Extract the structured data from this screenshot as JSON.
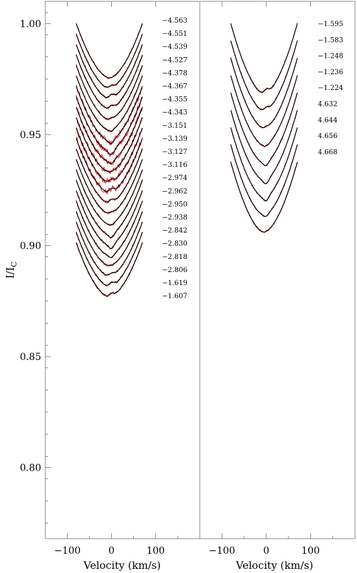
{
  "chart_data": [
    {
      "type": "line",
      "panel": "left",
      "xlabel": "Velocity (km/s)",
      "ylabel": "I/I",
      "ylabel_sub": "C",
      "xlim": [
        -150,
        200
      ],
      "ylim": [
        0.768,
        1.01
      ],
      "xticks": [
        -100,
        0,
        100
      ],
      "xtick_labels": [
        "−100",
        "0",
        "100"
      ],
      "yticks": [
        0.8,
        0.85,
        0.9,
        0.95,
        1.0
      ],
      "ytick_labels": [
        "0.80",
        "0.85",
        "0.90",
        "0.95",
        "1.00"
      ],
      "profile_continuum_step": 0.0047,
      "profile_top": 1.0,
      "profile_depth": 0.0245,
      "profile_velocity_range": [
        -80,
        70
      ],
      "series": [
        {
          "label": "−4.563",
          "offset": 1.0
        },
        {
          "label": "−4.551",
          "offset": 0.9953
        },
        {
          "label": "−4.539",
          "offset": 0.9906
        },
        {
          "label": "−4.527",
          "offset": 0.9859
        },
        {
          "label": "−4.378",
          "offset": 0.9812
        },
        {
          "label": "−4.367",
          "offset": 0.9765
        },
        {
          "label": "−4.355",
          "offset": 0.9718
        },
        {
          "label": "−4.343",
          "offset": 0.9671
        },
        {
          "label": "−3.151",
          "offset": 0.9624
        },
        {
          "label": "−3.139",
          "offset": 0.9577
        },
        {
          "label": "−3.127",
          "offset": 0.953
        },
        {
          "label": "−3.116",
          "offset": 0.9483
        },
        {
          "label": "−2.974",
          "offset": 0.9436
        },
        {
          "label": "−2.962",
          "offset": 0.9389
        },
        {
          "label": "−2.950",
          "offset": 0.9342
        },
        {
          "label": "−2.938",
          "offset": 0.9295
        },
        {
          "label": "−2.842",
          "offset": 0.9248
        },
        {
          "label": "−2.830",
          "offset": 0.9201
        },
        {
          "label": "−2.818",
          "offset": 0.9154
        },
        {
          "label": "−2.806",
          "offset": 0.9107
        },
        {
          "label": "−1.619",
          "offset": 0.906
        },
        {
          "label": "−1.607",
          "offset": 0.9013
        }
      ],
      "labelled_series_count": 22,
      "total_profiles": 22
    },
    {
      "type": "line",
      "panel": "right",
      "xlabel": "Velocity (km/s)",
      "xlim": [
        -150,
        200
      ],
      "xticks": [
        -100,
        0,
        100
      ],
      "xtick_labels": [
        "−100",
        "0",
        "100"
      ],
      "profile_continuum_step": 0.0078,
      "profile_top": 1.0,
      "profile_depth": 0.0316,
      "profile_velocity_range": [
        -80,
        70
      ],
      "series": [
        {
          "label": "−1.595",
          "offset": 1.0
        },
        {
          "label": "−1.583",
          "offset": 0.9922
        },
        {
          "label": "−1.248",
          "offset": 0.9844
        },
        {
          "label": "−1.236",
          "offset": 0.9766
        },
        {
          "label": "−1.224",
          "offset": 0.9688
        },
        {
          "label": "4.632",
          "offset": 0.961
        },
        {
          "label": "4.644",
          "offset": 0.9532
        },
        {
          "label": "4.656",
          "offset": 0.9454
        },
        {
          "label": "4.668",
          "offset": 0.9376
        }
      ],
      "total_profiles": 9
    }
  ]
}
